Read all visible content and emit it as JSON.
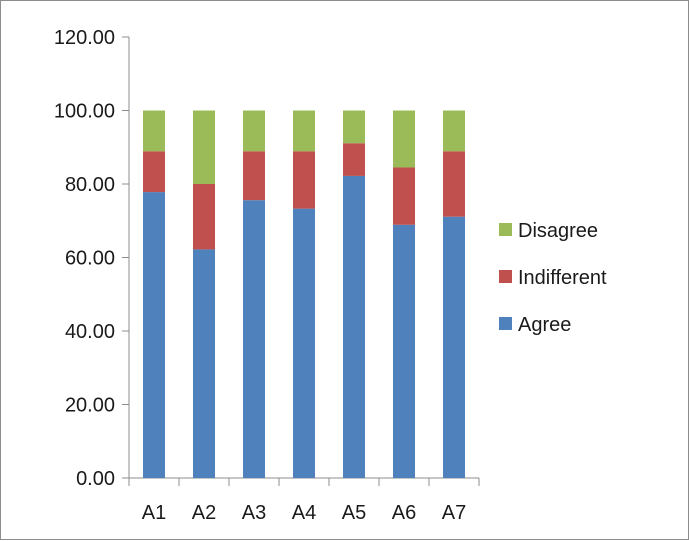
{
  "chart_data": {
    "type": "bar",
    "stacked": true,
    "title": "",
    "xlabel": "",
    "ylabel": "",
    "categories": [
      "A1",
      "A2",
      "A3",
      "A4",
      "A5",
      "A6",
      "A7"
    ],
    "series": [
      {
        "name": "Agree",
        "color": "#4f81bd",
        "values": [
          77.8,
          62.2,
          75.6,
          73.3,
          82.2,
          68.9,
          71.1
        ]
      },
      {
        "name": "Indifferent",
        "color": "#c0504d",
        "values": [
          11.1,
          17.8,
          13.3,
          15.6,
          8.9,
          15.6,
          17.8
        ]
      },
      {
        "name": "Disagree",
        "color": "#9bbb59",
        "values": [
          11.1,
          20.0,
          11.1,
          11.1,
          8.9,
          15.5,
          11.1
        ]
      }
    ],
    "ylim": [
      0,
      120
    ],
    "yticks": [
      0,
      20,
      40,
      60,
      80,
      100,
      120
    ],
    "ytick_labels": [
      "0.00",
      "20.00",
      "40.00",
      "60.00",
      "80.00",
      "100.00",
      "120.00"
    ],
    "grid": false,
    "legend": {
      "placement": "right",
      "order": [
        "Disagree",
        "Indifferent",
        "Agree"
      ]
    }
  }
}
